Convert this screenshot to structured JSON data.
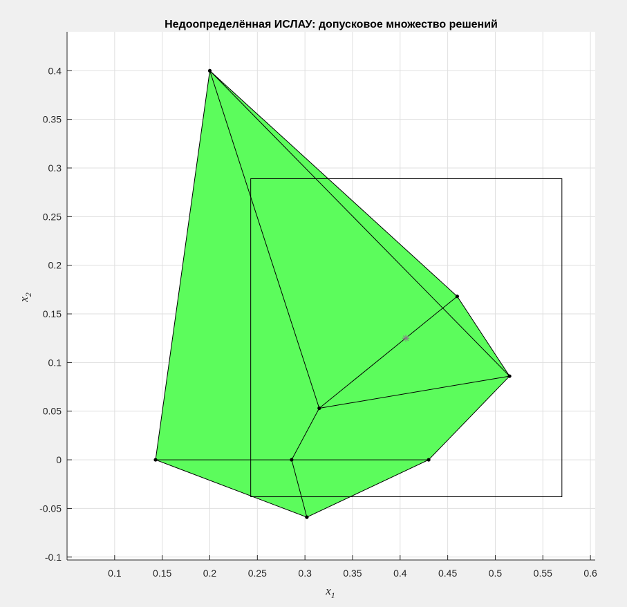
{
  "chart_data": {
    "type": "scatter",
    "title": "Недоопределённая ИСЛАУ: допусковое множество решений",
    "xlabel": "x",
    "xlabel_sub": "1",
    "ylabel": "x",
    "ylabel_sub": "2",
    "xlim": [
      0.05,
      0.605
    ],
    "ylim": [
      -0.103,
      0.44
    ],
    "x_ticks": [
      0.1,
      0.15,
      0.2,
      0.25,
      0.3,
      0.35,
      0.4,
      0.45,
      0.5,
      0.55,
      0.6
    ],
    "x_tick_labels": [
      "0.1",
      "0.15",
      "0.2",
      "0.25",
      "0.3",
      "0.35",
      "0.4",
      "0.45",
      "0.5",
      "0.55",
      "0.6"
    ],
    "y_ticks": [
      -0.1,
      -0.05,
      0,
      0.05,
      0.1,
      0.15,
      0.2,
      0.25,
      0.3,
      0.35,
      0.4
    ],
    "y_tick_labels": [
      "-0.1",
      "-0.05",
      "0",
      "0.05",
      "0.1",
      "0.15",
      "0.2",
      "0.25",
      "0.3",
      "0.35",
      "0.4"
    ],
    "grid": true,
    "colors": {
      "fill": "#5cfc5c",
      "edge": "#000000",
      "center_marker": "#8c6d8c",
      "grid": "#dfdfdf",
      "background": "#ffffff",
      "figure_background": "#f0f0f0"
    },
    "region_polygon": [
      [
        0.2,
        0.4
      ],
      [
        0.46,
        0.168
      ],
      [
        0.515,
        0.086
      ],
      [
        0.43,
        0.0
      ],
      [
        0.302,
        -0.059
      ],
      [
        0.143,
        0.0
      ]
    ],
    "vertices": [
      [
        0.2,
        0.4
      ],
      [
        0.46,
        0.168
      ],
      [
        0.515,
        0.086
      ],
      [
        0.43,
        0.0
      ],
      [
        0.302,
        -0.059
      ],
      [
        0.143,
        0.0
      ],
      [
        0.286,
        0.0
      ],
      [
        0.315,
        0.053
      ]
    ],
    "internal_edges": [
      [
        [
          0.2,
          0.4
        ],
        [
          0.515,
          0.086
        ]
      ],
      [
        [
          0.2,
          0.4
        ],
        [
          0.315,
          0.053
        ]
      ],
      [
        [
          0.315,
          0.053
        ],
        [
          0.515,
          0.086
        ]
      ],
      [
        [
          0.315,
          0.053
        ],
        [
          0.46,
          0.168
        ]
      ],
      [
        [
          0.315,
          0.053
        ],
        [
          0.286,
          0.0
        ]
      ],
      [
        [
          0.143,
          0.0
        ],
        [
          0.43,
          0.0
        ]
      ],
      [
        [
          0.286,
          0.0
        ],
        [
          0.302,
          -0.059
        ]
      ]
    ],
    "bounding_box": {
      "x1": [
        0.243,
        0.57
      ],
      "x2": [
        -0.038,
        0.289
      ]
    },
    "center": [
      0.406,
      0.125
    ]
  }
}
